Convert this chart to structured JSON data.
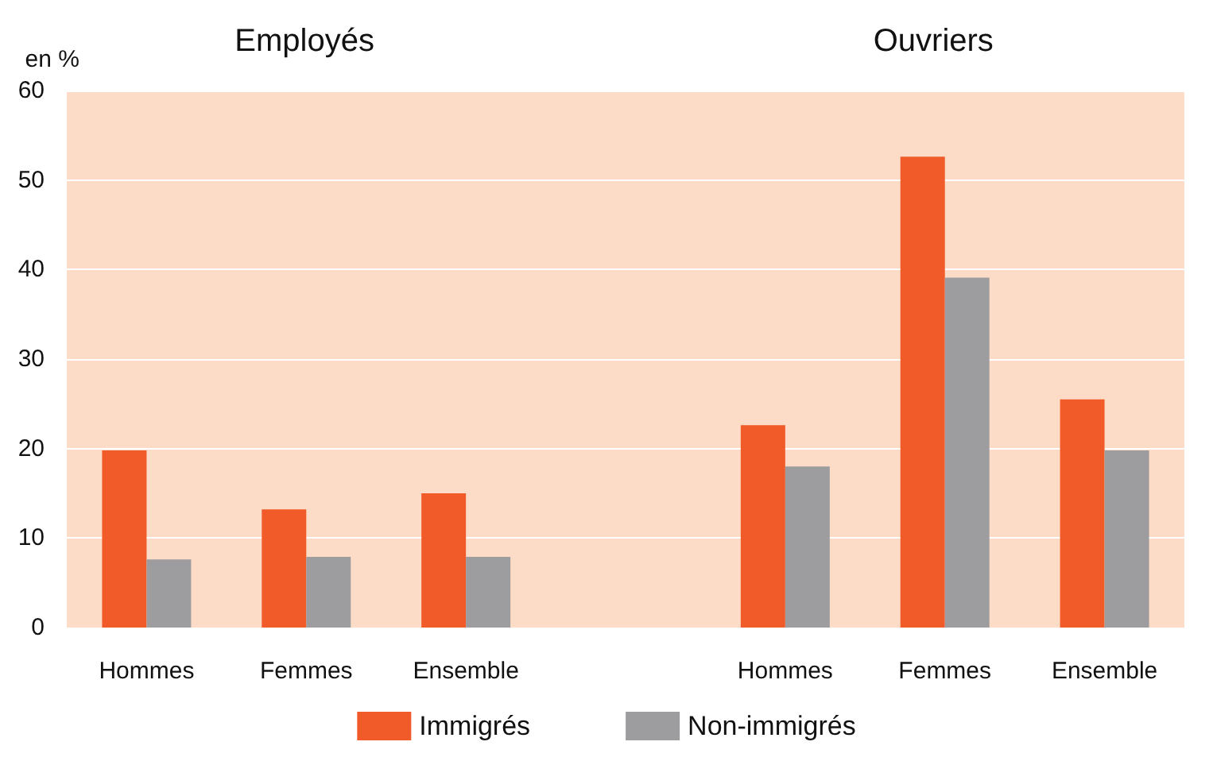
{
  "chart_data": {
    "type": "bar",
    "ylabel": "en %",
    "annotations": [
      "Employés",
      "Ouvriers"
    ],
    "categories": [
      "Hommes",
      "Femmes",
      "Ensemble",
      null,
      "Hommes",
      "Femmes",
      "Ensemble"
    ],
    "series": [
      {
        "name": "Immigrés",
        "color": "#f15a29",
        "values": [
          19.8,
          13.2,
          15.0,
          null,
          22.6,
          52.6,
          25.5
        ]
      },
      {
        "name": "Non-immigrés",
        "color": "#9d9d9f",
        "values": [
          7.6,
          7.9,
          7.9,
          null,
          18.0,
          39.1,
          19.8
        ]
      }
    ],
    "ylim": [
      0,
      60
    ],
    "yticks": [
      0,
      10,
      20,
      30,
      40,
      50,
      60
    ],
    "grid": "y",
    "legend": "bottom"
  }
}
